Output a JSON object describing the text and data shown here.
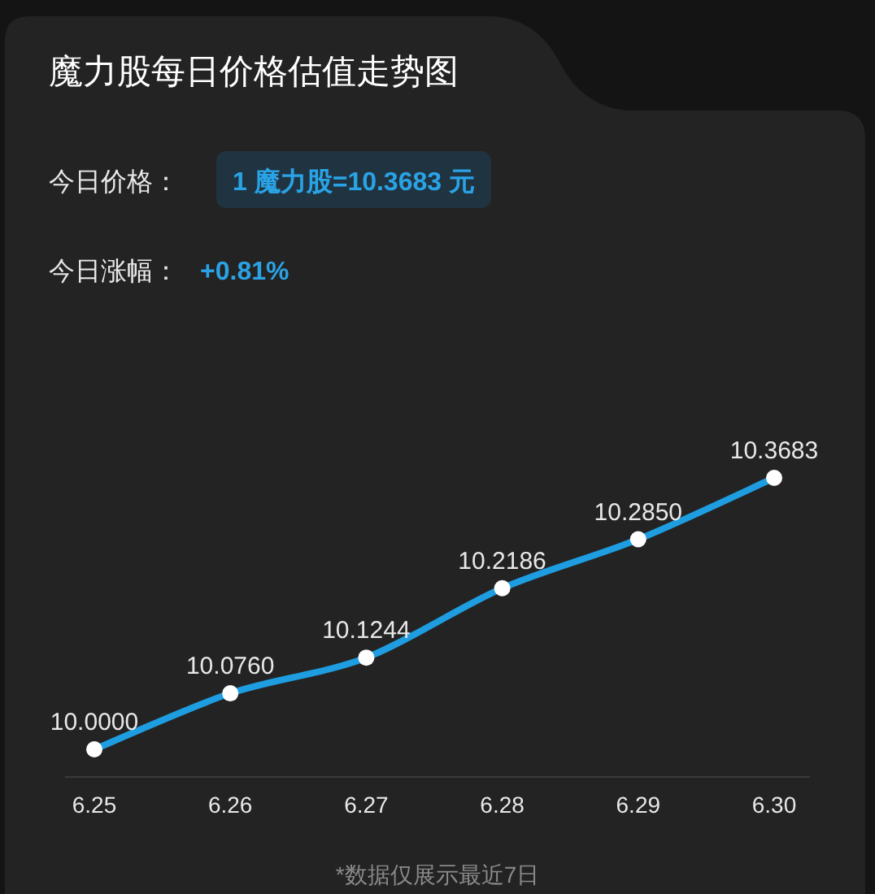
{
  "chart_data": {
    "type": "line",
    "title": "魔力股每日价格估值走势图",
    "annotations": [
      "今日价格：",
      "1 魔力股=10.3683 元",
      "今日涨幅：",
      "+0.81%",
      "*数据仅展示最近7日"
    ],
    "categories": [
      "6.25",
      "6.26",
      "6.27",
      "6.28",
      "6.29",
      "6.30"
    ],
    "series": [
      {
        "color": "#1e9de0",
        "values": [
          10.0,
          10.076,
          10.1244,
          10.2186,
          10.285,
          10.3683
        ],
        "value_labels": [
          "10.0000",
          "10.0760",
          "10.1244",
          "10.2186",
          "10.2850",
          "10.3683"
        ]
      }
    ],
    "marker": "circle",
    "line_style": "solid"
  }
}
